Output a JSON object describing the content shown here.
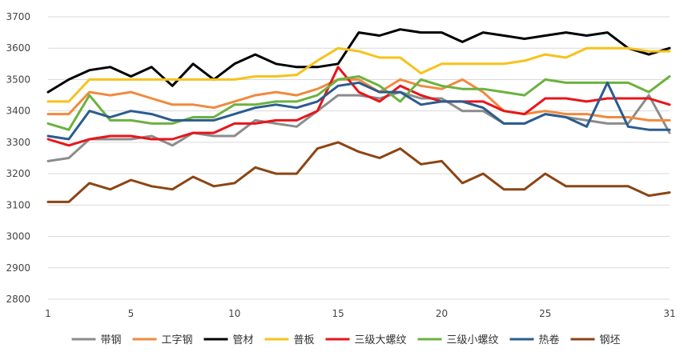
{
  "chart_data": {
    "type": "line",
    "title": "",
    "xlabel": "",
    "ylabel": "",
    "xlim": [
      1,
      31
    ],
    "ylim": [
      2800,
      3700
    ],
    "x_ticks": [
      1,
      5,
      10,
      15,
      20,
      25,
      31
    ],
    "y_ticks": [
      2800,
      2900,
      3000,
      3100,
      3200,
      3300,
      3400,
      3500,
      3600,
      3700
    ],
    "grid": "horizontal",
    "legend_position": "bottom",
    "x": [
      1,
      2,
      3,
      4,
      5,
      6,
      7,
      8,
      9,
      10,
      11,
      12,
      13,
      14,
      15,
      16,
      17,
      18,
      19,
      20,
      21,
      22,
      23,
      24,
      25,
      26,
      27,
      28,
      29,
      30,
      31
    ],
    "series": [
      {
        "name": "带钢",
        "color": "#8c8c8c",
        "values": [
          3240,
          3250,
          3310,
          3310,
          3310,
          3320,
          3290,
          3330,
          3320,
          3320,
          3370,
          3360,
          3350,
          3400,
          3450,
          3450,
          3440,
          3460,
          3440,
          3440,
          3400,
          3400,
          3360,
          3360,
          3390,
          3380,
          3370,
          3360,
          3360,
          3450,
          3330
        ]
      },
      {
        "name": "工字钢",
        "color": "#f08a3e",
        "values": [
          3390,
          3390,
          3460,
          3450,
          3460,
          3440,
          3420,
          3420,
          3410,
          3430,
          3450,
          3460,
          3450,
          3470,
          3500,
          3500,
          3460,
          3500,
          3480,
          3470,
          3500,
          3460,
          3400,
          3390,
          3400,
          3390,
          3390,
          3380,
          3380,
          3370,
          3370
        ]
      },
      {
        "name": "管材",
        "color": "#000000",
        "values": [
          3460,
          3500,
          3530,
          3540,
          3510,
          3540,
          3480,
          3550,
          3500,
          3550,
          3580,
          3550,
          3540,
          3540,
          3550,
          3650,
          3640,
          3660,
          3650,
          3650,
          3620,
          3650,
          3640,
          3630,
          3640,
          3650,
          3640,
          3650,
          3600,
          3580,
          3600
        ]
      },
      {
        "name": "普板",
        "color": "#f7c21b",
        "values": [
          3430,
          3430,
          3500,
          3500,
          3500,
          3500,
          3500,
          3500,
          3500,
          3500,
          3510,
          3510,
          3515,
          3560,
          3600,
          3590,
          3570,
          3570,
          3520,
          3550,
          3550,
          3550,
          3550,
          3560,
          3580,
          3570,
          3600,
          3600,
          3600,
          3590,
          3590
        ]
      },
      {
        "name": "三级大螺纹",
        "color": "#e8151b",
        "values": [
          3310,
          3290,
          3310,
          3320,
          3320,
          3310,
          3310,
          3330,
          3330,
          3360,
          3360,
          3370,
          3370,
          3400,
          3540,
          3460,
          3430,
          3480,
          3450,
          3430,
          3430,
          3430,
          3400,
          3390,
          3440,
          3440,
          3430,
          3440,
          3440,
          3440,
          3420
        ]
      },
      {
        "name": "三级小螺纹",
        "color": "#6cb23f",
        "values": [
          3360,
          3340,
          3450,
          3370,
          3370,
          3360,
          3360,
          3380,
          3380,
          3420,
          3420,
          3430,
          3430,
          3450,
          3500,
          3510,
          3480,
          3430,
          3500,
          3480,
          3470,
          3470,
          3460,
          3450,
          3500,
          3490,
          3490,
          3490,
          3490,
          3460,
          3510
        ]
      },
      {
        "name": "热卷",
        "color": "#2b5c8f",
        "values": [
          3320,
          3310,
          3400,
          3380,
          3400,
          3390,
          3370,
          3370,
          3370,
          3390,
          3410,
          3420,
          3410,
          3430,
          3480,
          3490,
          3460,
          3460,
          3420,
          3430,
          3430,
          3410,
          3360,
          3360,
          3390,
          3380,
          3350,
          3490,
          3350,
          3340,
          3340
        ]
      },
      {
        "name": "钢坯",
        "color": "#8b4513",
        "values": [
          3110,
          3110,
          3170,
          3150,
          3180,
          3160,
          3150,
          3190,
          3160,
          3170,
          3220,
          3200,
          3200,
          3280,
          3300,
          3270,
          3250,
          3280,
          3230,
          3240,
          3170,
          3200,
          3150,
          3150,
          3200,
          3160,
          3160,
          3160,
          3160,
          3130,
          3140
        ]
      }
    ]
  }
}
